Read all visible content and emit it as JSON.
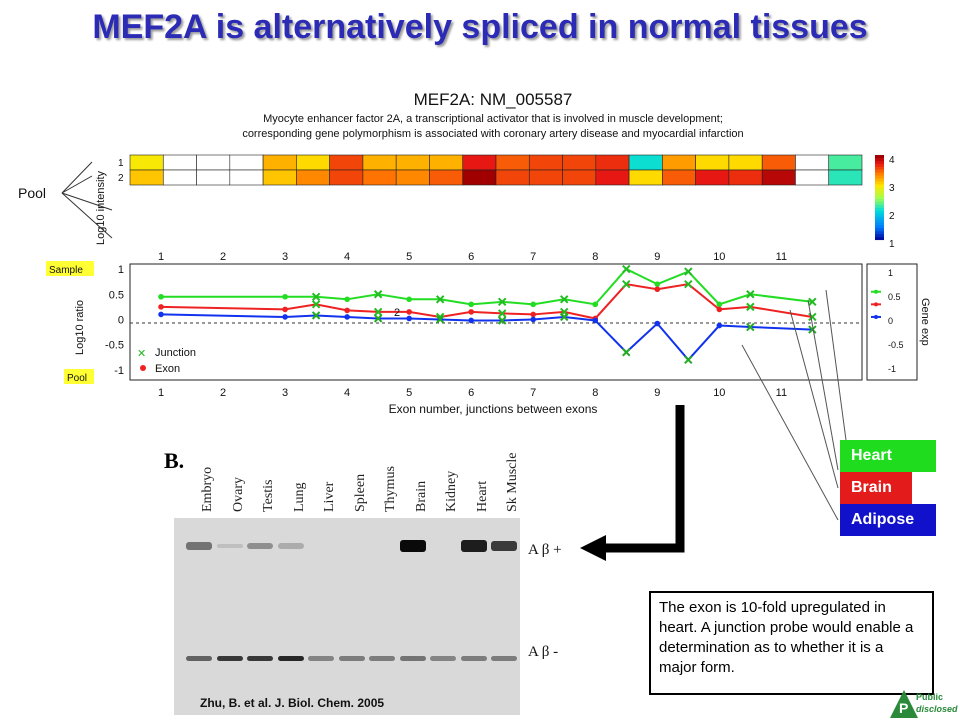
{
  "slide_title": "MEF2A is alternatively spliced in normal tissues",
  "chart_data": {
    "type": "line",
    "title": "MEF2A: NM_005587",
    "subtitle_line1": "Myocyte enhancer factor 2A, a transcriptional activator that is involved in muscle development;",
    "subtitle_line2": "corresponding gene polymorphism is associated with coronary artery disease and myocardial infarction",
    "xlabel": "Exon number, junctions between exons",
    "ylabel": "Log10 ratio",
    "right_ylabel": "Gene exp",
    "heatmap_ylabel": "Log10 intensity",
    "xlim": [
      0.5,
      12.3
    ],
    "ylim": [
      -1.2,
      1.1
    ],
    "x_ticks": [
      "1",
      "2",
      "3",
      "4",
      "5",
      "6",
      "7",
      "8",
      "9",
      "10",
      "11"
    ],
    "y_ticks": [
      1,
      0.5,
      0,
      -0.5,
      -1
    ],
    "y_tick_labels": [
      "1",
      "0.5",
      "0",
      "-0.5",
      "-1"
    ],
    "right_ticks": [
      "1",
      "0.5",
      "0",
      "-0.5",
      "-1"
    ],
    "colorbar_ticks": [
      "4",
      "3",
      "2",
      "1"
    ],
    "heatmap_row_labels": [
      "1",
      "2"
    ],
    "heatmap": {
      "row1": [
        3.5,
        1,
        1,
        1,
        3.8,
        3.6,
        4.3,
        3.8,
        3.8,
        3.8,
        4.5,
        4.2,
        4.3,
        4.3,
        4.4,
        2.5,
        3.9,
        3.6,
        3.6,
        4.2,
        1,
        2.7
      ],
      "row2": [
        3.7,
        1,
        1,
        1,
        3.7,
        4.0,
        4.3,
        4.1,
        4.0,
        4.2,
        4.8,
        4.3,
        4.3,
        4.3,
        4.5,
        3.6,
        4.2,
        4.5,
        4.4,
        4.7,
        1,
        2.6
      ]
    },
    "legend_entries": [
      "Junction",
      "Exon"
    ],
    "side_labels": {
      "pool": "Pool",
      "sample": "Sample",
      "pool_small": "Pool"
    },
    "series": [
      {
        "name": "Heart",
        "color": "#22dd22",
        "x": [
          1,
          3,
          3.5,
          4,
          4.5,
          5,
          5.5,
          6,
          6.5,
          7,
          7.5,
          8,
          8.5,
          9,
          9.5,
          10,
          10.5,
          11.5
        ],
        "y": [
          0.45,
          0.45,
          0.45,
          0.4,
          0.5,
          0.4,
          0.4,
          0.3,
          0.35,
          0.3,
          0.4,
          0.3,
          1.0,
          0.7,
          0.95,
          0.3,
          0.5,
          0.35
        ]
      },
      {
        "name": "Brain",
        "color": "#ee2222",
        "x": [
          1,
          3,
          3.5,
          4,
          4.5,
          5,
          5.5,
          6,
          6.5,
          7,
          7.5,
          8,
          8.5,
          9,
          9.5,
          10,
          10.5,
          11.5
        ],
        "y": [
          0.25,
          0.2,
          0.3,
          0.18,
          0.15,
          0.15,
          0.05,
          0.15,
          0.12,
          0.1,
          0.15,
          0.02,
          0.7,
          0.6,
          0.7,
          0.2,
          0.25,
          0.05
        ]
      },
      {
        "name": "Adipose",
        "color": "#1133ee",
        "x": [
          1,
          3,
          3.5,
          4,
          4.5,
          5,
          5.5,
          6,
          6.5,
          7,
          7.5,
          8,
          8.5,
          9,
          9.5,
          10,
          10.5,
          11.5
        ],
        "y": [
          0.1,
          0.05,
          0.08,
          0.05,
          0.02,
          0.02,
          0.0,
          -0.02,
          -0.02,
          0.0,
          0.05,
          -0.02,
          -0.65,
          -0.08,
          -0.8,
          -0.12,
          -0.15,
          -0.2
        ]
      }
    ],
    "junction_x": [
      3.5,
      4.5,
      5.5,
      6.5,
      7.5,
      8.5,
      9.5,
      10.5,
      11.5
    ],
    "annotation": "2"
  },
  "gel": {
    "letter": "B.",
    "lanes": [
      "Embryo",
      "Ovary",
      "Testis",
      "Lung",
      "Liver",
      "Spleen",
      "Thymus",
      "Brain",
      "Kidney",
      "Heart",
      "Sk Muscle"
    ],
    "upper_band_label": "A β +",
    "lower_band_label": "A β -"
  },
  "citation": "Zhu, B. et al. J. Biol. Chem. 2005",
  "tissue_legend": [
    {
      "label": "Heart",
      "color": "#1fdc1f"
    },
    {
      "label": "Brain",
      "color": "#e31b1b"
    },
    {
      "label": "Adipose",
      "color": "#1111cc"
    }
  ],
  "callout_text": "The exon is 10-fold upregulated in heart. A junction probe would enable a determination as to whether it is a major form.",
  "logo": {
    "line1": "Public",
    "line2": "disclosed",
    "letter": "P"
  }
}
